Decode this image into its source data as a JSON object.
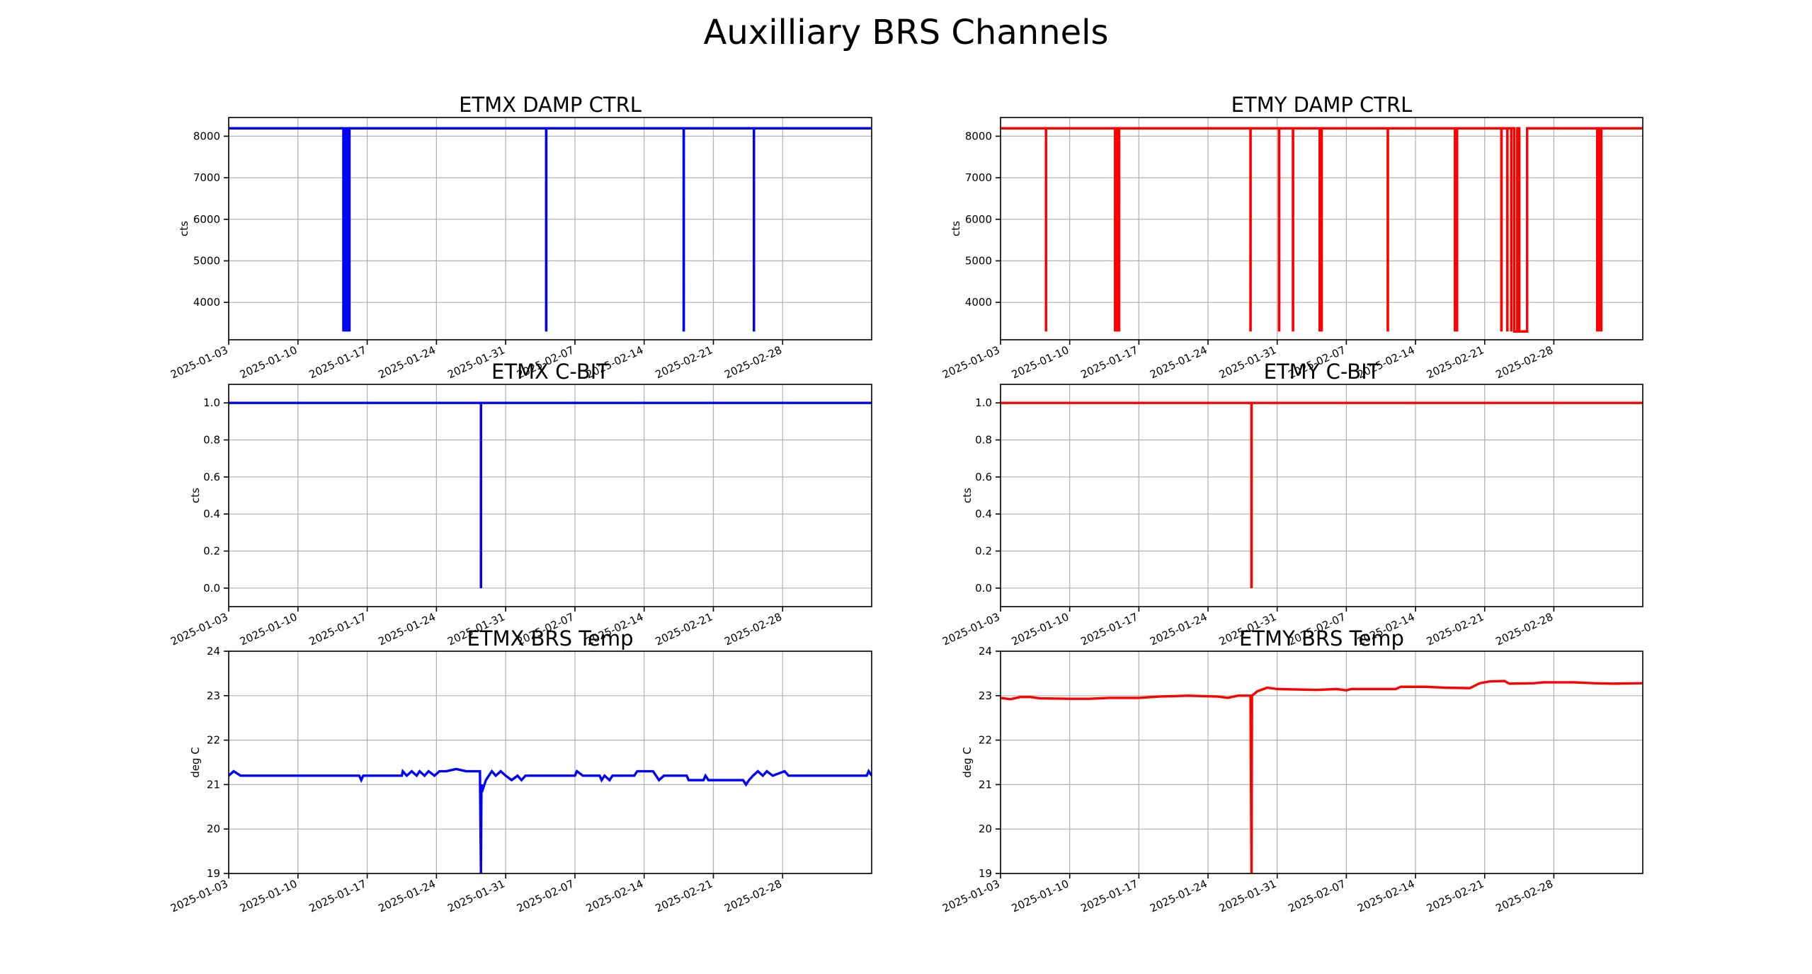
{
  "figure": {
    "title": "Auxilliary BRS Channels"
  },
  "chart_data": [
    {
      "id": "etmx-damp",
      "type": "line",
      "title": "ETMX DAMP CTRL",
      "xlabel": "",
      "ylabel": "cts",
      "color": "#0000ff",
      "xlim": [
        "2025-01-03",
        "2025-03-09"
      ],
      "ylim": [
        3100,
        8450
      ],
      "yticks": [
        4000,
        5000,
        6000,
        7000,
        8000
      ],
      "ytick_labels": [
        "4000",
        "5000",
        "6000",
        "7000",
        "8000"
      ],
      "xticks": [
        "2025-01-03",
        "2025-01-10",
        "2025-01-17",
        "2025-01-24",
        "2025-01-31",
        "2025-02-07",
        "2025-02-14",
        "2025-02-21",
        "2025-02-28"
      ],
      "grid": true,
      "series": [
        {
          "baseline": 8190,
          "points": [
            [
              "2025-01-03",
              8190
            ],
            [
              "2025-03-09",
              8190
            ]
          ],
          "drops": [
            [
              "2025-01-14.6",
              3300
            ],
            [
              "2025-01-14.75",
              3300
            ],
            [
              "2025-01-14.9",
              3300
            ],
            [
              "2025-01-15.05",
              3300
            ],
            [
              "2025-01-15.2",
              3300
            ],
            [
              "2025-02-04.1",
              3300
            ],
            [
              "2025-02-18.0",
              3300
            ],
            [
              "2025-02-25.1",
              3300
            ]
          ]
        }
      ]
    },
    {
      "id": "etmy-damp",
      "type": "line",
      "title": "ETMY DAMP CTRL",
      "xlabel": "",
      "ylabel": "cts",
      "color": "#ff0000",
      "xlim": [
        "2025-01-03",
        "2025-03-09"
      ],
      "ylim": [
        3100,
        8450
      ],
      "yticks": [
        4000,
        5000,
        6000,
        7000,
        8000
      ],
      "ytick_labels": [
        "4000",
        "5000",
        "6000",
        "7000",
        "8000"
      ],
      "xticks": [
        "2025-01-03",
        "2025-01-10",
        "2025-01-17",
        "2025-01-24",
        "2025-01-31",
        "2025-02-07",
        "2025-02-14",
        "2025-02-21",
        "2025-02-28"
      ],
      "grid": true,
      "series": [
        {
          "baseline": 8190,
          "points": [
            [
              "2025-01-03",
              8190
            ],
            [
              "2025-03-09",
              8190
            ]
          ],
          "drops": [
            [
              "2025-01-07.6",
              3300
            ],
            [
              "2025-01-14.6",
              3300
            ],
            [
              "2025-01-14.8",
              3300
            ],
            [
              "2025-01-15.0",
              3300
            ],
            [
              "2025-01-28.3",
              3300
            ],
            [
              "2025-01-31.2",
              3300
            ],
            [
              "2025-02-01.6",
              3300
            ],
            [
              "2025-02-04.3",
              3300
            ],
            [
              "2025-02-04.5",
              3300
            ],
            [
              "2025-02-11.2",
              3300
            ],
            [
              "2025-02-18.0",
              3300
            ],
            [
              "2025-02-18.2",
              3300
            ],
            [
              "2025-02-22.7",
              3300
            ],
            [
              "2025-02-23.3",
              3300
            ],
            [
              "2025-02-23.7",
              3300
            ],
            [
              "2025-03-04.4",
              3300
            ],
            [
              "2025-03-04.6",
              3300
            ],
            [
              "2025-03-04.8",
              3300
            ]
          ],
          "blocks": [
            [
              "2025-02-24.0",
              "2025-02-24.3",
              3300
            ],
            [
              "2025-02-24.5",
              "2025-02-25.3",
              3300
            ]
          ]
        }
      ]
    },
    {
      "id": "etmx-cbit",
      "type": "line",
      "title": "ETMX C-BIT",
      "xlabel": "",
      "ylabel": "cts",
      "color": "#0000ff",
      "xlim": [
        "2025-01-03",
        "2025-03-09"
      ],
      "ylim": [
        -0.1,
        1.1
      ],
      "yticks": [
        0.0,
        0.2,
        0.4,
        0.6,
        0.8,
        1.0
      ],
      "ytick_labels": [
        "0.0",
        "0.2",
        "0.4",
        "0.6",
        "0.8",
        "1.0"
      ],
      "xticks": [
        "2025-01-03",
        "2025-01-10",
        "2025-01-17",
        "2025-01-24",
        "2025-01-31",
        "2025-02-07",
        "2025-02-14",
        "2025-02-21",
        "2025-02-28"
      ],
      "grid": true,
      "series": [
        {
          "baseline": 1.0,
          "points": [
            [
              "2025-01-03",
              1.0
            ],
            [
              "2025-03-09",
              1.0
            ]
          ],
          "drops": [
            [
              "2025-01-28.5",
              0.0
            ]
          ]
        }
      ]
    },
    {
      "id": "etmy-cbit",
      "type": "line",
      "title": "ETMY C-BIT",
      "xlabel": "",
      "ylabel": "cts",
      "color": "#ff0000",
      "xlim": [
        "2025-01-03",
        "2025-03-09"
      ],
      "ylim": [
        -0.1,
        1.1
      ],
      "yticks": [
        0.0,
        0.2,
        0.4,
        0.6,
        0.8,
        1.0
      ],
      "ytick_labels": [
        "0.0",
        "0.2",
        "0.4",
        "0.6",
        "0.8",
        "1.0"
      ],
      "xticks": [
        "2025-01-03",
        "2025-01-10",
        "2025-01-17",
        "2025-01-24",
        "2025-01-31",
        "2025-02-07",
        "2025-02-14",
        "2025-02-21",
        "2025-02-28"
      ],
      "grid": true,
      "series": [
        {
          "baseline": 1.0,
          "points": [
            [
              "2025-01-03",
              1.0
            ],
            [
              "2025-03-09",
              1.0
            ]
          ],
          "drops": [
            [
              "2025-01-28.4",
              0.0
            ]
          ]
        }
      ]
    },
    {
      "id": "etmx-temp",
      "type": "line",
      "title": "ETMX BRS Temp",
      "xlabel": "",
      "ylabel": "deg C",
      "color": "#0000ff",
      "xlim": [
        "2025-01-03",
        "2025-03-09"
      ],
      "ylim": [
        19,
        24
      ],
      "yticks": [
        19,
        20,
        21,
        22,
        23,
        24
      ],
      "ytick_labels": [
        "19",
        "20",
        "21",
        "22",
        "23",
        "24"
      ],
      "xticks": [
        "2025-01-03",
        "2025-01-10",
        "2025-01-17",
        "2025-01-24",
        "2025-01-31",
        "2025-02-07",
        "2025-02-14",
        "2025-02-21",
        "2025-02-28"
      ],
      "grid": true,
      "series": [
        {
          "points": [
            [
              "2025-01-03",
              21.2
            ],
            [
              "2025-01-03.5",
              21.3
            ],
            [
              "2025-01-04.2",
              21.2
            ],
            [
              "2025-01-15",
              21.2
            ],
            [
              "2025-01-16.2",
              21.2
            ],
            [
              "2025-01-16.4",
              21.1
            ],
            [
              "2025-01-16.6",
              21.2
            ],
            [
              "2025-01-20.5",
              21.2
            ],
            [
              "2025-01-20.6",
              21.3
            ],
            [
              "2025-01-21.0",
              21.2
            ],
            [
              "2025-01-21.5",
              21.3
            ],
            [
              "2025-01-22.0",
              21.2
            ],
            [
              "2025-01-22.3",
              21.3
            ],
            [
              "2025-01-22.8",
              21.2
            ],
            [
              "2025-01-23.2",
              21.3
            ],
            [
              "2025-01-23.8",
              21.2
            ],
            [
              "2025-01-24.3",
              21.3
            ],
            [
              "2025-01-25.0",
              21.3
            ],
            [
              "2025-01-26.0",
              21.35
            ],
            [
              "2025-01-27.0",
              21.3
            ],
            [
              "2025-01-28.4",
              21.3
            ],
            [
              "2025-01-28.5",
              19.0
            ],
            [
              "2025-01-28.55",
              21.0
            ],
            [
              "2025-01-28.7",
              20.9
            ],
            [
              "2025-01-29.0",
              21.1
            ],
            [
              "2025-01-29.3",
              21.2
            ],
            [
              "2025-01-29.6",
              21.3
            ],
            [
              "2025-01-30.0",
              21.2
            ],
            [
              "2025-01-30.5",
              21.3
            ],
            [
              "2025-01-31.0",
              21.2
            ],
            [
              "2025-01-31.6",
              21.1
            ],
            [
              "2025-02-01.2",
              21.2
            ],
            [
              "2025-02-01.6",
              21.1
            ],
            [
              "2025-02-02.0",
              21.2
            ],
            [
              "2025-02-07.0",
              21.2
            ],
            [
              "2025-02-07.2",
              21.3
            ],
            [
              "2025-02-07.8",
              21.2
            ],
            [
              "2025-02-09.5",
              21.2
            ],
            [
              "2025-02-09.7",
              21.1
            ],
            [
              "2025-02-10.0",
              21.2
            ],
            [
              "2025-02-10.5",
              21.1
            ],
            [
              "2025-02-10.8",
              21.2
            ],
            [
              "2025-02-13.0",
              21.2
            ],
            [
              "2025-02-13.3",
              21.3
            ],
            [
              "2025-02-14.9",
              21.3
            ],
            [
              "2025-02-15.2",
              21.2
            ],
            [
              "2025-02-15.5",
              21.1
            ],
            [
              "2025-02-16.0",
              21.2
            ],
            [
              "2025-02-18.3",
              21.2
            ],
            [
              "2025-02-18.5",
              21.1
            ],
            [
              "2025-02-20.0",
              21.1
            ],
            [
              "2025-02-20.2",
              21.2
            ],
            [
              "2025-02-20.5",
              21.1
            ],
            [
              "2025-02-24.0",
              21.1
            ],
            [
              "2025-02-24.3",
              21.0
            ],
            [
              "2025-02-24.6",
              21.1
            ],
            [
              "2025-02-25.0",
              21.2
            ],
            [
              "2025-02-25.5",
              21.3
            ],
            [
              "2025-02-26.0",
              21.2
            ],
            [
              "2025-02-26.4",
              21.3
            ],
            [
              "2025-02-27.0",
              21.2
            ],
            [
              "2025-02-28.2",
              21.3
            ],
            [
              "2025-02-28.6",
              21.2
            ],
            [
              "2025-03-08.5",
              21.2
            ],
            [
              "2025-03-08.7",
              21.3
            ],
            [
              "2025-03-09",
              21.2
            ]
          ]
        }
      ]
    },
    {
      "id": "etmy-temp",
      "type": "line",
      "title": "ETMY BRS Temp",
      "xlabel": "",
      "ylabel": "deg C",
      "color": "#ff0000",
      "xlim": [
        "2025-01-03",
        "2025-03-09"
      ],
      "ylim": [
        19,
        24
      ],
      "yticks": [
        19,
        20,
        21,
        22,
        23,
        24
      ],
      "ytick_labels": [
        "19",
        "20",
        "21",
        "22",
        "23",
        "24"
      ],
      "xticks": [
        "2025-01-03",
        "2025-01-10",
        "2025-01-17",
        "2025-01-24",
        "2025-01-31",
        "2025-02-07",
        "2025-02-14",
        "2025-02-21",
        "2025-02-28"
      ],
      "grid": true,
      "series": [
        {
          "points": [
            [
              "2025-01-03",
              22.95
            ],
            [
              "2025-01-04.0",
              22.92
            ],
            [
              "2025-01-05.0",
              22.97
            ],
            [
              "2025-01-06.0",
              22.97
            ],
            [
              "2025-01-07.0",
              22.94
            ],
            [
              "2025-01-10.0",
              22.93
            ],
            [
              "2025-01-12.0",
              22.93
            ],
            [
              "2025-01-14.0",
              22.95
            ],
            [
              "2025-01-17.0",
              22.95
            ],
            [
              "2025-01-19.0",
              22.98
            ],
            [
              "2025-01-22.0",
              23.0
            ],
            [
              "2025-01-25.0",
              22.98
            ],
            [
              "2025-01-26.0",
              22.95
            ],
            [
              "2025-01-27.0",
              23.0
            ],
            [
              "2025-01-28.3",
              23.0
            ],
            [
              "2025-01-28.4",
              19.0
            ],
            [
              "2025-01-28.45",
              23.0
            ],
            [
              "2025-01-29.0",
              23.1
            ],
            [
              "2025-01-30.0",
              23.18
            ],
            [
              "2025-01-31.0",
              23.15
            ],
            [
              "2025-02-04.0",
              23.13
            ],
            [
              "2025-02-06.0",
              23.15
            ],
            [
              "2025-02-07.0",
              23.12
            ],
            [
              "2025-02-07.5",
              23.15
            ],
            [
              "2025-02-10.0",
              23.15
            ],
            [
              "2025-02-12.0",
              23.15
            ],
            [
              "2025-02-12.5",
              23.2
            ],
            [
              "2025-02-15.0",
              23.2
            ],
            [
              "2025-02-17.0",
              23.18
            ],
            [
              "2025-02-19.5",
              23.17
            ],
            [
              "2025-02-20.5",
              23.28
            ],
            [
              "2025-02-21.5",
              23.32
            ],
            [
              "2025-02-23.0",
              23.33
            ],
            [
              "2025-02-23.5",
              23.27
            ],
            [
              "2025-02-26.0",
              23.28
            ],
            [
              "2025-02-27.0",
              23.3
            ],
            [
              "2025-03-02.0",
              23.3
            ],
            [
              "2025-03-04.0",
              23.28
            ],
            [
              "2025-03-06.0",
              23.27
            ],
            [
              "2025-03-09",
              23.28
            ]
          ]
        }
      ]
    }
  ]
}
